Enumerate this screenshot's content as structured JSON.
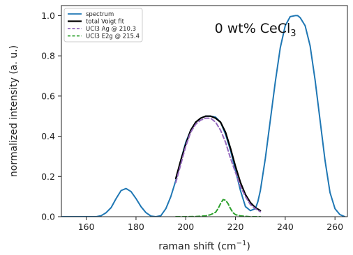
{
  "chart_data": {
    "type": "line",
    "title": "",
    "xlabel_main": "raman shift (cm",
    "xlabel_sup": "−1",
    "xlabel_end": ")",
    "ylabel": "normalized intensity (a. u.)",
    "xlim": [
      150,
      265
    ],
    "ylim": [
      0,
      1.05
    ],
    "xticks": [
      160,
      180,
      200,
      220,
      240,
      260
    ],
    "yticks": [
      0.0,
      0.2,
      0.4,
      0.6,
      0.8,
      1.0
    ],
    "ytick_labels": [
      "0.0",
      "0.2",
      "0.4",
      "0.6",
      "0.8",
      "1.0"
    ],
    "annotation": {
      "main": "0 wt% CeCl",
      "sub": "3",
      "x": 228,
      "y": 0.915
    },
    "legend": {
      "placement": "top-left",
      "entries": [
        {
          "label": "spectrum",
          "color": "#1f77b4",
          "style": "solid"
        },
        {
          "label": "total Voigt fit",
          "color": "#000000",
          "style": "solid"
        },
        {
          "label": "UCl3 Ag @ 210.3",
          "color": "#9467bd",
          "style": "dashed"
        },
        {
          "label": "UCl3 E2g @ 215.4",
          "color": "#2ca02c",
          "style": "dashed"
        }
      ]
    },
    "series": [
      {
        "name": "spectrum",
        "color": "#1f77b4",
        "style": "solid",
        "x": [
          150,
          160,
          164,
          166,
          168,
          170,
          172,
          174,
          176,
          178,
          180,
          182,
          184,
          186,
          188,
          190,
          192,
          194,
          196,
          198,
          200,
          202,
          204,
          206,
          208,
          210,
          212,
          214,
          216,
          218,
          220,
          222,
          224,
          226,
          228,
          229,
          230,
          232,
          234,
          236,
          238,
          240,
          242,
          244,
          245,
          246,
          248,
          250,
          252,
          254,
          256,
          258,
          260,
          262,
          264
        ],
        "y": [
          0.0,
          0.0,
          0.0,
          0.005,
          0.02,
          0.045,
          0.09,
          0.13,
          0.14,
          0.125,
          0.09,
          0.05,
          0.02,
          0.003,
          0.0,
          0.005,
          0.04,
          0.1,
          0.18,
          0.28,
          0.37,
          0.43,
          0.47,
          0.49,
          0.5,
          0.5,
          0.495,
          0.47,
          0.41,
          0.33,
          0.23,
          0.13,
          0.05,
          0.03,
          0.04,
          0.075,
          0.13,
          0.29,
          0.48,
          0.67,
          0.84,
          0.95,
          0.995,
          1.0,
          1.0,
          0.99,
          0.95,
          0.85,
          0.68,
          0.48,
          0.28,
          0.12,
          0.04,
          0.01,
          0.0
        ]
      },
      {
        "name": "total Voigt fit",
        "color": "#000000",
        "style": "solid",
        "x": [
          196,
          198,
          200,
          202,
          204,
          206,
          208,
          210,
          212,
          214,
          216,
          218,
          220,
          222,
          224,
          226,
          228,
          230
        ],
        "y": [
          0.19,
          0.28,
          0.36,
          0.43,
          0.47,
          0.49,
          0.5,
          0.5,
          0.49,
          0.47,
          0.42,
          0.34,
          0.25,
          0.17,
          0.11,
          0.07,
          0.045,
          0.03
        ]
      },
      {
        "name": "UCl3 Ag @ 210.3",
        "color": "#9467bd",
        "style": "dashed",
        "x": [
          196,
          198,
          200,
          202,
          204,
          206,
          208,
          210,
          212,
          214,
          216,
          218,
          220,
          222,
          224,
          226,
          228,
          230
        ],
        "y": [
          0.17,
          0.26,
          0.35,
          0.42,
          0.46,
          0.48,
          0.49,
          0.49,
          0.47,
          0.43,
          0.37,
          0.29,
          0.22,
          0.15,
          0.1,
          0.06,
          0.04,
          0.025
        ]
      },
      {
        "name": "UCl3 E2g @ 215.4",
        "color": "#2ca02c",
        "style": "dashed",
        "x": [
          196,
          200,
          204,
          208,
          210,
          212,
          213,
          214,
          215,
          216,
          217,
          218,
          219,
          220,
          222,
          224,
          226,
          230
        ],
        "y": [
          0.0,
          0.0,
          0.001,
          0.004,
          0.01,
          0.022,
          0.04,
          0.065,
          0.085,
          0.082,
          0.065,
          0.04,
          0.02,
          0.01,
          0.004,
          0.002,
          0.0,
          0.0
        ]
      }
    ]
  }
}
